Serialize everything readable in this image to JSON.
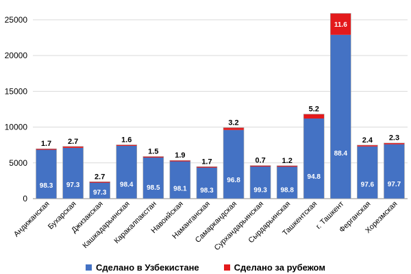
{
  "chart_data": {
    "type": "bar",
    "stacked": true,
    "categories": [
      "Андижанская",
      "Бухарская",
      "Джизакская",
      "Кашкадарьинская",
      "Каракалпакстан",
      "Навоийская",
      "Наманганская",
      "Самаркандская",
      "Сурхандарьинская",
      "Сырдарьинская",
      "Ташкентская",
      "г. Ташкент",
      "Ферганская",
      "Хорезмская"
    ],
    "series": [
      {
        "name": "Сделано в Узбекистане",
        "color": "#4472C4",
        "values": [
          6850,
          7100,
          2300,
          7400,
          5800,
          5250,
          4400,
          9600,
          4600,
          4550,
          11200,
          22900,
          7300,
          7600
        ],
        "labels": [
          "98.3",
          "97.3",
          "97.3",
          "98.4",
          "98.5",
          "98.1",
          "98.3",
          "96.8",
          "99.3",
          "98.8",
          "94.8",
          "88.4",
          "97.6",
          "97.7"
        ]
      },
      {
        "name": "Сделано за рубежом",
        "color": "#E31A1C",
        "values": [
          120,
          200,
          65,
          120,
          90,
          100,
          75,
          320,
          30,
          55,
          620,
          3000,
          180,
          180
        ],
        "labels": [
          "1.7",
          "2.7",
          "2.7",
          "1.6",
          "1.5",
          "1.9",
          "1.7",
          "3.2",
          "0.7",
          "1.2",
          "5.2",
          "11.6",
          "2.4",
          "2.3"
        ]
      }
    ],
    "yticks": [
      0,
      5000,
      10000,
      15000,
      20000,
      25000
    ],
    "ylim": [
      0,
      27000
    ],
    "grid": true,
    "legend_position": "bottom"
  }
}
